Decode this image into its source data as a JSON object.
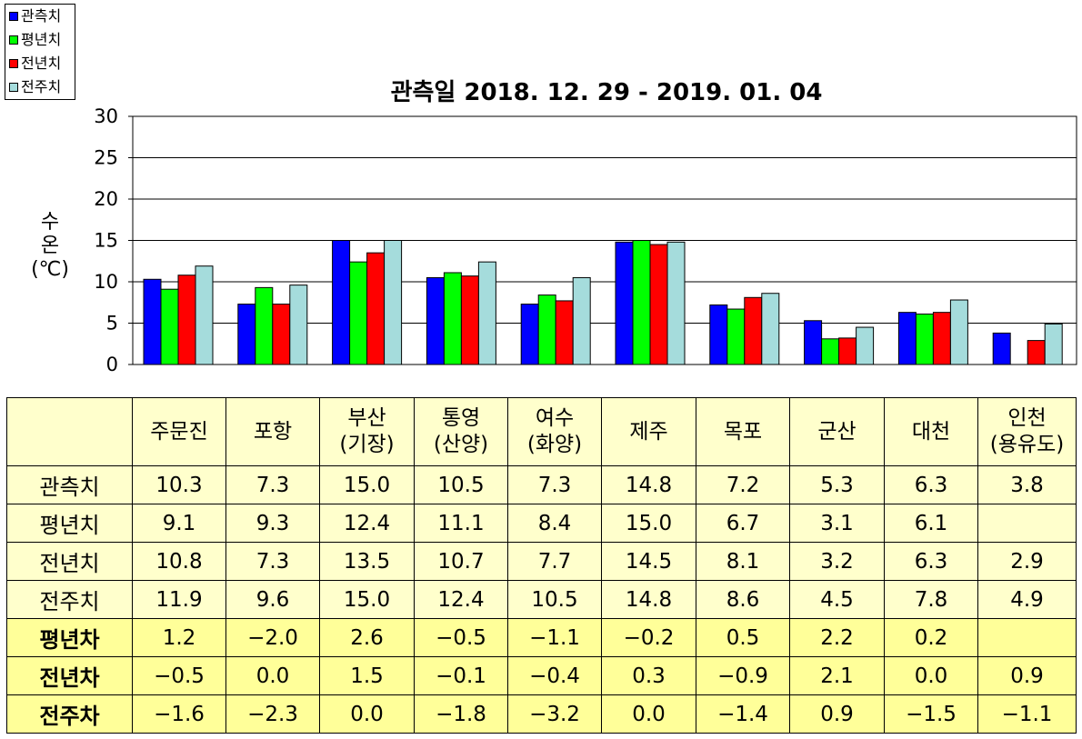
{
  "chart_data": {
    "type": "bar",
    "title": "관측일 2018. 12. 29 - 2019. 01. 04",
    "ylabel_lines": [
      "수",
      "온",
      "(℃)"
    ],
    "ylim": [
      0,
      30
    ],
    "yticks": [
      0,
      5,
      10,
      15,
      20,
      25,
      30
    ],
    "grid": true,
    "legend_position": "top-left",
    "categories": [
      "주문진",
      "포항",
      "부산 (기장)",
      "통영 (산양)",
      "여수 (화양)",
      "제주",
      "목포",
      "군산",
      "대천",
      "인천 (용유도)"
    ],
    "series": [
      {
        "name": "관측치",
        "color": "#0000FF",
        "values": [
          10.3,
          7.3,
          15.0,
          10.5,
          7.3,
          14.8,
          7.2,
          5.3,
          6.3,
          3.8
        ]
      },
      {
        "name": "평년치",
        "color": "#00FF00",
        "values": [
          9.1,
          9.3,
          12.4,
          11.1,
          8.4,
          15.0,
          6.7,
          3.1,
          6.1,
          null
        ]
      },
      {
        "name": "전년치",
        "color": "#FF0000",
        "values": [
          10.8,
          7.3,
          13.5,
          10.7,
          7.7,
          14.5,
          8.1,
          3.2,
          6.3,
          2.9
        ]
      },
      {
        "name": "전주치",
        "color": "#A5DCDC",
        "values": [
          11.9,
          9.6,
          15.0,
          12.4,
          10.5,
          14.8,
          8.6,
          4.5,
          7.8,
          4.9
        ]
      }
    ]
  },
  "table": {
    "header": [
      [
        "주문진"
      ],
      [
        "포항"
      ],
      [
        "부산",
        "(기장)"
      ],
      [
        "통영",
        "(산양)"
      ],
      [
        "여수",
        "(화양)"
      ],
      [
        "제주"
      ],
      [
        "목포"
      ],
      [
        "군산"
      ],
      [
        "대천"
      ],
      [
        "인천",
        "(용유도)"
      ]
    ],
    "rows": [
      {
        "label": "관측치",
        "kind": "obs",
        "values": [
          "10.3",
          "7.3",
          "15.0",
          "10.5",
          "7.3",
          "14.8",
          "7.2",
          "5.3",
          "6.3",
          "3.8"
        ]
      },
      {
        "label": "평년치",
        "kind": "obs",
        "values": [
          "9.1",
          "9.3",
          "12.4",
          "11.1",
          "8.4",
          "15.0",
          "6.7",
          "3.1",
          "6.1",
          ""
        ]
      },
      {
        "label": "전년치",
        "kind": "obs",
        "values": [
          "10.8",
          "7.3",
          "13.5",
          "10.7",
          "7.7",
          "14.5",
          "8.1",
          "3.2",
          "6.3",
          "2.9"
        ]
      },
      {
        "label": "전주치",
        "kind": "obs",
        "values": [
          "11.9",
          "9.6",
          "15.0",
          "12.4",
          "10.5",
          "14.8",
          "8.6",
          "4.5",
          "7.8",
          "4.9"
        ]
      },
      {
        "label": "평년차",
        "kind": "diff",
        "values": [
          "1.2",
          "−2.0",
          "2.6",
          "−0.5",
          "−1.1",
          "−0.2",
          "0.5",
          "2.2",
          "0.2",
          ""
        ]
      },
      {
        "label": "전년차",
        "kind": "diff",
        "values": [
          "−0.5",
          "0.0",
          "1.5",
          "−0.1",
          "−0.4",
          "0.3",
          "−0.9",
          "2.1",
          "0.0",
          "0.9"
        ]
      },
      {
        "label": "전주차",
        "kind": "diff",
        "values": [
          "−1.6",
          "−2.3",
          "0.0",
          "−1.8",
          "−3.2",
          "0.0",
          "−1.4",
          "0.9",
          "−1.5",
          "−1.1"
        ]
      }
    ]
  }
}
